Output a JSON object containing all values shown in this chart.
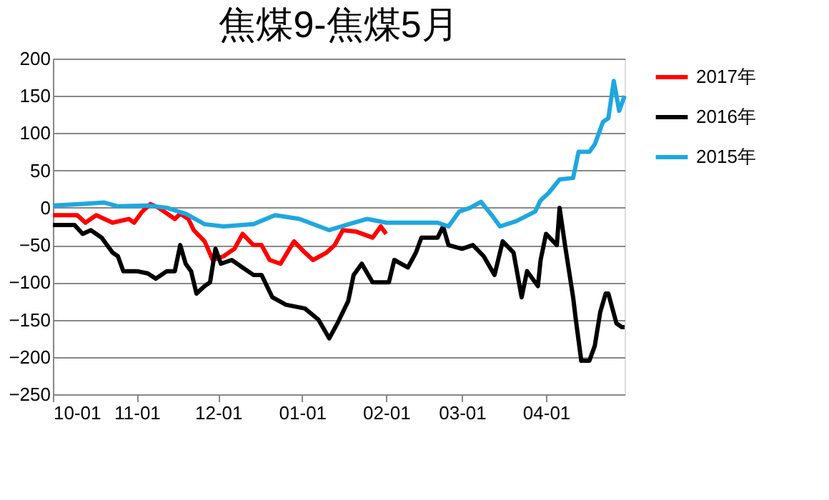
{
  "chart_data": {
    "type": "line",
    "title": "焦煤9-焦煤5月",
    "xlim": [
      "2016-10-01",
      "2017-04-30"
    ],
    "xticks": [
      {
        "value": "2016-10-01",
        "label": "10-01"
      },
      {
        "value": "2016-11-01",
        "label": "11-01"
      },
      {
        "value": "2016-12-01",
        "label": "12-01"
      },
      {
        "value": "2017-01-01",
        "label": "01-01"
      },
      {
        "value": "2017-02-01",
        "label": "02-01"
      },
      {
        "value": "2017-03-01",
        "label": "03-01"
      },
      {
        "value": "2017-04-01",
        "label": "04-01"
      }
    ],
    "ylim": [
      -250,
      200
    ],
    "yticks": [
      -250,
      -200,
      -150,
      -100,
      -50,
      0,
      50,
      100,
      150,
      200
    ],
    "grid": "y",
    "legend": "right",
    "marker": "none",
    "line_style": "solid",
    "series": [
      {
        "name": "2017年",
        "color": "#ff0000",
        "x": [
          "2016-10-01",
          "2016-10-10",
          "2016-10-13",
          "2016-10-17",
          "2016-10-23",
          "2016-10-29",
          "2016-10-31",
          "2016-11-03",
          "2016-11-06",
          "2016-11-09",
          "2016-11-13",
          "2016-11-15",
          "2016-11-17",
          "2016-11-20",
          "2016-11-22",
          "2016-11-26",
          "2016-11-29",
          "2016-12-03",
          "2016-12-07",
          "2016-12-10",
          "2016-12-14",
          "2016-12-17",
          "2016-12-20",
          "2016-12-24",
          "2016-12-29",
          "2017-01-02",
          "2017-01-05",
          "2017-01-10",
          "2017-01-13",
          "2017-01-16",
          "2017-01-21",
          "2017-01-27",
          "2017-01-30",
          "2017-02-01"
        ],
        "values": [
          -10,
          -10,
          -20,
          -10,
          -20,
          -15,
          -20,
          -5,
          5,
          0,
          -10,
          -15,
          -8,
          -15,
          -30,
          -45,
          -70,
          -65,
          -55,
          -35,
          -50,
          -50,
          -70,
          -75,
          -45,
          -60,
          -70,
          -60,
          -50,
          -30,
          -32,
          -40,
          -25,
          -35
        ]
      },
      {
        "name": "2016年",
        "color": "#000000",
        "x": [
          "2016-10-01",
          "2016-10-09",
          "2016-10-12",
          "2016-10-15",
          "2016-10-19",
          "2016-10-23",
          "2016-10-25",
          "2016-10-27",
          "2016-11-01",
          "2016-11-05",
          "2016-11-08",
          "2016-11-12",
          "2016-11-15",
          "2016-11-17",
          "2016-11-19",
          "2016-11-21",
          "2016-11-23",
          "2016-11-26",
          "2016-11-28",
          "2016-11-30",
          "2016-12-02",
          "2016-12-06",
          "2016-12-10",
          "2016-12-14",
          "2016-12-17",
          "2016-12-21",
          "2016-12-26",
          "2017-01-02",
          "2017-01-07",
          "2017-01-11",
          "2017-01-14",
          "2017-01-18",
          "2017-01-20",
          "2017-01-23",
          "2017-01-27",
          "2017-02-02",
          "2017-02-04",
          "2017-02-09",
          "2017-02-12",
          "2017-02-14",
          "2017-02-20",
          "2017-02-22",
          "2017-02-24",
          "2017-03-01",
          "2017-03-05",
          "2017-03-09",
          "2017-03-13",
          "2017-03-16",
          "2017-03-20",
          "2017-03-23",
          "2017-03-25",
          "2017-03-29",
          "2017-03-30",
          "2017-04-01",
          "2017-04-05",
          "2017-04-06",
          "2017-04-08",
          "2017-04-11",
          "2017-04-12",
          "2017-04-14",
          "2017-04-17",
          "2017-04-19",
          "2017-04-21",
          "2017-04-23",
          "2017-04-24",
          "2017-04-27",
          "2017-04-29",
          "2017-04-30"
        ],
        "values": [
          -23,
          -23,
          -35,
          -30,
          -40,
          -60,
          -65,
          -85,
          -85,
          -88,
          -95,
          -85,
          -85,
          -50,
          -75,
          -85,
          -115,
          -105,
          -100,
          -55,
          -75,
          -70,
          -80,
          -90,
          -90,
          -120,
          -130,
          -135,
          -150,
          -175,
          -155,
          -125,
          -90,
          -75,
          -100,
          -100,
          -70,
          -80,
          -60,
          -40,
          -40,
          -25,
          -50,
          -55,
          -50,
          -65,
          -90,
          -45,
          -60,
          -120,
          -85,
          -105,
          -70,
          -35,
          -50,
          0,
          -50,
          -120,
          -150,
          -205,
          -205,
          -185,
          -140,
          -115,
          -115,
          -155,
          -160,
          -160
        ]
      },
      {
        "name": "2015年",
        "color": "#1ea7e1",
        "x": [
          "2016-10-01",
          "2016-10-11",
          "2016-10-20",
          "2016-10-25",
          "2016-11-05",
          "2016-11-12",
          "2016-11-19",
          "2016-11-26",
          "2016-12-03",
          "2016-12-14",
          "2016-12-22",
          "2016-12-31",
          "2017-01-11",
          "2017-01-20",
          "2017-01-25",
          "2017-02-01",
          "2017-02-20",
          "2017-02-24",
          "2017-02-28",
          "2017-03-04",
          "2017-03-08",
          "2017-03-12",
          "2017-03-15",
          "2017-03-21",
          "2017-03-28",
          "2017-03-30",
          "2017-04-02",
          "2017-04-06",
          "2017-04-11",
          "2017-04-13",
          "2017-04-17",
          "2017-04-19",
          "2017-04-22",
          "2017-04-24",
          "2017-04-26",
          "2017-04-28",
          "2017-04-30"
        ],
        "values": [
          3,
          5,
          7,
          2,
          3,
          0,
          -8,
          -22,
          -25,
          -22,
          -10,
          -15,
          -30,
          -20,
          -15,
          -20,
          -20,
          -25,
          -5,
          0,
          8,
          -10,
          -25,
          -18,
          -5,
          10,
          20,
          38,
          40,
          75,
          75,
          85,
          115,
          120,
          170,
          130,
          150
        ]
      }
    ]
  }
}
